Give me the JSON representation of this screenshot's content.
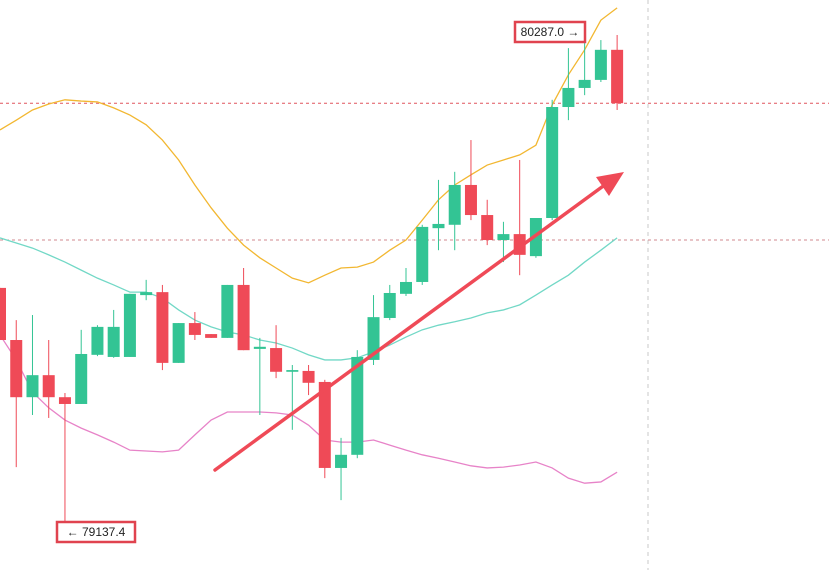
{
  "chart_data": {
    "type": "candlestick",
    "ylim": [
      79024.1,
      80369.6
    ],
    "up_color": "#33c494",
    "down_color": "#ef4a57",
    "open": [
      79690,
      79567,
      79432,
      79484,
      79432,
      79416,
      79532,
      79527,
      79527,
      79673,
      79680,
      79513,
      79607,
      79581,
      79572,
      79697,
      79546,
      79548,
      79492,
      79494,
      79468,
      79265,
      79296,
      79520,
      79619,
      79676,
      79704,
      79831,
      79839,
      79933,
      79862,
      79803,
      79817,
      79765,
      79855,
      80117,
      80162,
      80181,
      80252
    ],
    "high": [
      79690,
      79614,
      79626,
      79567,
      79442,
      79591,
      79602,
      79638,
      79676,
      79709,
      79697,
      79607,
      79633,
      79581,
      79697,
      79737,
      79572,
      79602,
      79508,
      79508,
      79473,
      79336,
      79543,
      79673,
      79697,
      79737,
      79839,
      79945,
      79964,
      80039,
      79898,
      79846,
      79992,
      79855,
      80134,
      80256,
      80270,
      80275,
      80287.0
    ],
    "low": [
      79567,
      79267,
      79390,
      79383,
      79137.4,
      79416,
      79529,
      79525,
      79527,
      79661,
      79496,
      79513,
      79567,
      79572,
      79572,
      79543,
      79390,
      79477,
      79355,
      79437,
      79241,
      79189,
      79288,
      79508,
      79614,
      79671,
      79697,
      79779,
      79779,
      79850,
      79791,
      79751,
      79720,
      79761,
      79850,
      80086,
      80145,
      80176,
      80110
    ],
    "close": [
      79567,
      79432,
      79484,
      79432,
      79416,
      79534,
      79598,
      79598,
      79676,
      79680,
      79513,
      79607,
      79579,
      79572,
      79697,
      79543,
      79551,
      79492,
      79496,
      79466,
      79265,
      79296,
      79527,
      79621,
      79678,
      79704,
      79834,
      79841,
      79933,
      79862,
      79803,
      79817,
      79768,
      79855,
      80117,
      80162,
      80181,
      80252,
      80126
    ],
    "bands": [
      {
        "color": "#f2b731",
        "values": [
          80063,
          80086,
          80110,
          80124,
          80134,
          80131,
          80129,
          80115,
          80098,
          80075,
          80039,
          79992,
          79933,
          79879,
          79831,
          79791,
          79761,
          79737,
          79713,
          79702,
          79720,
          79737,
          79739,
          79751,
          79779,
          79803,
          79850,
          79898,
          79933,
          79957,
          79980,
          79992,
          80004,
          80027,
          80122,
          80193,
          80252,
          80322,
          80351
        ]
      },
      {
        "color": "#72d8c6",
        "values": [
          79808,
          79796,
          79784,
          79768,
          79751,
          79732,
          79713,
          79697,
          79680,
          79680,
          79666,
          79638,
          79614,
          79598,
          79586,
          79579,
          79567,
          79560,
          79548,
          79532,
          79520,
          79520,
          79525,
          79539,
          79555,
          79574,
          79591,
          79602,
          79610,
          79619,
          79631,
          79638,
          79650,
          79673,
          79697,
          79720,
          79751,
          79779,
          79808
        ]
      },
      {
        "color": "#e783c8",
        "values": [
          79579,
          79520,
          79444,
          79407,
          79378,
          79359,
          79343,
          79326,
          79307,
          79305,
          79303,
          79307,
          79343,
          79378,
          79397,
          79397,
          79397,
          79395,
          79390,
          79366,
          79331,
          79326,
          79326,
          79331,
          79319,
          79307,
          79296,
          79288,
          79279,
          79270,
          79265,
          79267,
          79272,
          79279,
          79265,
          79241,
          79229,
          79232,
          79255
        ]
      }
    ],
    "price_lines": [
      {
        "value": 80126,
        "color": "#e0555e"
      },
      {
        "value": 79803,
        "color": "#d08a8f"
      }
    ],
    "high_label": "80287.0 →",
    "low_label": "← 79137.4"
  }
}
